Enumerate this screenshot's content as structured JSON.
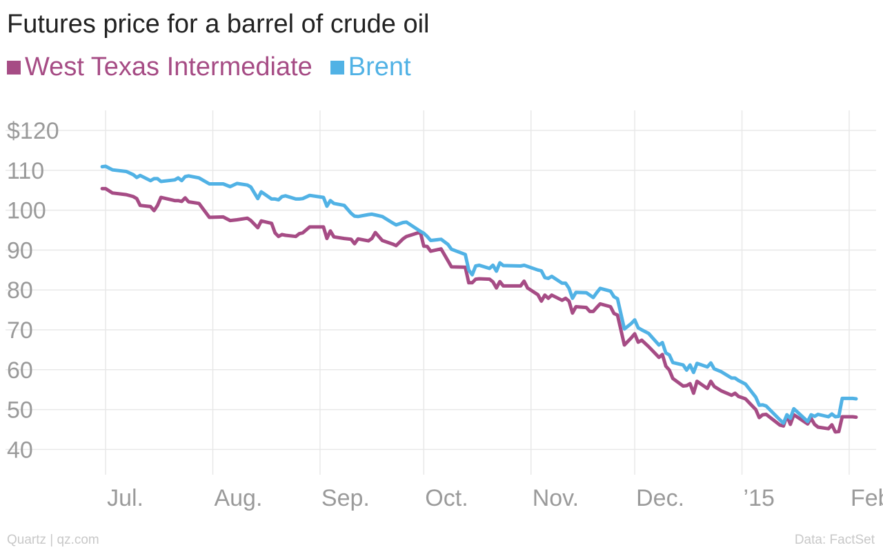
{
  "colors": {
    "wti": "#a64c85",
    "brent": "#51b2e5",
    "grid": "#e8e8e8",
    "text": "#9a9a9a",
    "title": "#222222"
  },
  "footer": {
    "source_left": "Quartz | qz.com",
    "source_right": "Data: FactSet"
  },
  "chart_data": {
    "type": "line",
    "title": "Futures price for a barrel of crude oil",
    "xlabel": "",
    "ylabel": "",
    "ylim": [
      35,
      125
    ],
    "y_ticks": [
      {
        "value": 120,
        "label": "$120"
      },
      {
        "value": 110,
        "label": "110"
      },
      {
        "value": 100,
        "label": "100"
      },
      {
        "value": 90,
        "label": "90"
      },
      {
        "value": 80,
        "label": "80"
      },
      {
        "value": 70,
        "label": "70"
      },
      {
        "value": 60,
        "label": "60"
      },
      {
        "value": 50,
        "label": "50"
      },
      {
        "value": 40,
        "label": "40"
      }
    ],
    "x_domain": [
      "2014-06-26",
      "2015-02-04"
    ],
    "x_ticks": [
      {
        "date": "2014-07-01",
        "label": "Jul."
      },
      {
        "date": "2014-08-01",
        "label": "Aug."
      },
      {
        "date": "2014-09-01",
        "label": "Sep."
      },
      {
        "date": "2014-10-01",
        "label": "Oct."
      },
      {
        "date": "2014-11-01",
        "label": "Nov."
      },
      {
        "date": "2014-12-01",
        "label": "Dec."
      },
      {
        "date": "2015-01-01",
        "label": "’15"
      },
      {
        "date": "2015-02-01",
        "label": "Feb."
      }
    ],
    "legend_position": "top-left",
    "grid": true,
    "series": [
      {
        "name": "West Texas Intermediate",
        "color": "#a64c85",
        "points": [
          [
            "2014-06-30",
            105.4
          ],
          [
            "2014-07-01",
            105.4
          ],
          [
            "2014-07-03",
            104.3
          ],
          [
            "2014-07-07",
            103.9
          ],
          [
            "2014-07-09",
            103.4
          ],
          [
            "2014-07-10",
            102.9
          ],
          [
            "2014-07-11",
            101.2
          ],
          [
            "2014-07-14",
            100.9
          ],
          [
            "2014-07-15",
            99.9
          ],
          [
            "2014-07-16",
            101.2
          ],
          [
            "2014-07-17",
            103.2
          ],
          [
            "2014-07-21",
            102.4
          ],
          [
            "2014-07-22",
            102.4
          ],
          [
            "2014-07-23",
            102.2
          ],
          [
            "2014-07-24",
            103.1
          ],
          [
            "2014-07-25",
            102.1
          ],
          [
            "2014-07-28",
            101.7
          ],
          [
            "2014-07-31",
            98.2
          ],
          [
            "2014-08-04",
            98.3
          ],
          [
            "2014-08-06",
            97.4
          ],
          [
            "2014-08-08",
            97.6
          ],
          [
            "2014-08-11",
            98.0
          ],
          [
            "2014-08-12",
            97.4
          ],
          [
            "2014-08-14",
            95.6
          ],
          [
            "2014-08-15",
            97.3
          ],
          [
            "2014-08-18",
            96.7
          ],
          [
            "2014-08-19",
            94.3
          ],
          [
            "2014-08-20",
            93.4
          ],
          [
            "2014-08-21",
            93.9
          ],
          [
            "2014-08-22",
            93.7
          ],
          [
            "2014-08-25",
            93.4
          ],
          [
            "2014-08-26",
            94.1
          ],
          [
            "2014-08-27",
            94.3
          ],
          [
            "2014-08-29",
            95.8
          ],
          [
            "2014-09-02",
            95.8
          ],
          [
            "2014-09-03",
            92.9
          ],
          [
            "2014-09-04",
            94.8
          ],
          [
            "2014-09-05",
            93.3
          ],
          [
            "2014-09-08",
            92.9
          ],
          [
            "2014-09-10",
            92.7
          ],
          [
            "2014-09-11",
            91.6
          ],
          [
            "2014-09-12",
            92.8
          ],
          [
            "2014-09-15",
            92.3
          ],
          [
            "2014-09-16",
            92.9
          ],
          [
            "2014-09-17",
            94.4
          ],
          [
            "2014-09-19",
            92.4
          ],
          [
            "2014-09-22",
            91.5
          ],
          [
            "2014-09-23",
            91.1
          ],
          [
            "2014-09-25",
            92.8
          ],
          [
            "2014-09-26",
            93.4
          ],
          [
            "2014-09-30",
            94.5
          ],
          [
            "2014-10-01",
            91.0
          ],
          [
            "2014-10-02",
            90.9
          ],
          [
            "2014-10-03",
            89.7
          ],
          [
            "2014-10-06",
            90.3
          ],
          [
            "2014-10-08",
            87.3
          ],
          [
            "2014-10-09",
            85.8
          ],
          [
            "2014-10-13",
            85.7
          ],
          [
            "2014-10-14",
            81.8
          ],
          [
            "2014-10-15",
            81.8
          ],
          [
            "2014-10-16",
            82.7
          ],
          [
            "2014-10-17",
            82.8
          ],
          [
            "2014-10-20",
            82.7
          ],
          [
            "2014-10-21",
            82.0
          ],
          [
            "2014-10-22",
            80.5
          ],
          [
            "2014-10-23",
            82.1
          ],
          [
            "2014-10-24",
            81.0
          ],
          [
            "2014-10-29",
            81.0
          ],
          [
            "2014-10-30",
            82.2
          ],
          [
            "2014-10-31",
            80.5
          ],
          [
            "2014-11-03",
            78.8
          ],
          [
            "2014-11-04",
            77.2
          ],
          [
            "2014-11-05",
            78.7
          ],
          [
            "2014-11-06",
            77.9
          ],
          [
            "2014-11-07",
            78.7
          ],
          [
            "2014-11-10",
            77.4
          ],
          [
            "2014-11-11",
            77.9
          ],
          [
            "2014-11-12",
            77.2
          ],
          [
            "2014-11-13",
            74.2
          ],
          [
            "2014-11-14",
            75.8
          ],
          [
            "2014-11-17",
            75.6
          ],
          [
            "2014-11-18",
            74.6
          ],
          [
            "2014-11-19",
            74.6
          ],
          [
            "2014-11-20",
            75.6
          ],
          [
            "2014-11-21",
            76.5
          ],
          [
            "2014-11-24",
            75.8
          ],
          [
            "2014-11-25",
            74.1
          ],
          [
            "2014-11-26",
            73.7
          ],
          [
            "2014-11-28",
            66.2
          ],
          [
            "2014-11-30",
            68.0
          ],
          [
            "2014-12-01",
            69.0
          ],
          [
            "2014-12-02",
            66.9
          ],
          [
            "2014-12-03",
            67.4
          ],
          [
            "2014-12-05",
            65.8
          ],
          [
            "2014-12-08",
            63.1
          ],
          [
            "2014-12-09",
            63.8
          ],
          [
            "2014-12-10",
            60.9
          ],
          [
            "2014-12-11",
            59.9
          ],
          [
            "2014-12-12",
            57.8
          ],
          [
            "2014-12-15",
            55.9
          ],
          [
            "2014-12-16",
            56.0
          ],
          [
            "2014-12-17",
            56.5
          ],
          [
            "2014-12-18",
            54.1
          ],
          [
            "2014-12-19",
            57.1
          ],
          [
            "2014-12-22",
            55.3
          ],
          [
            "2014-12-23",
            57.1
          ],
          [
            "2014-12-24",
            55.8
          ],
          [
            "2014-12-26",
            54.7
          ],
          [
            "2014-12-29",
            53.6
          ],
          [
            "2014-12-30",
            54.1
          ],
          [
            "2014-12-31",
            53.3
          ],
          [
            "2015-01-02",
            52.7
          ],
          [
            "2015-01-05",
            50.0
          ],
          [
            "2015-01-06",
            48.0
          ],
          [
            "2015-01-07",
            48.7
          ],
          [
            "2015-01-08",
            48.8
          ],
          [
            "2015-01-12",
            46.1
          ],
          [
            "2015-01-13",
            45.9
          ],
          [
            "2015-01-14",
            48.5
          ],
          [
            "2015-01-15",
            46.3
          ],
          [
            "2015-01-16",
            48.7
          ],
          [
            "2015-01-20",
            46.4
          ],
          [
            "2015-01-21",
            47.8
          ],
          [
            "2015-01-22",
            46.3
          ],
          [
            "2015-01-23",
            45.6
          ],
          [
            "2015-01-26",
            45.2
          ],
          [
            "2015-01-27",
            46.2
          ],
          [
            "2015-01-28",
            44.4
          ],
          [
            "2015-01-29",
            44.5
          ],
          [
            "2015-01-30",
            48.2
          ],
          [
            "2015-02-02",
            48.2
          ],
          [
            "2015-02-03",
            48.1
          ]
        ]
      },
      {
        "name": "Brent",
        "color": "#51b2e5",
        "points": [
          [
            "2014-06-30",
            110.9
          ],
          [
            "2014-07-01",
            111.0
          ],
          [
            "2014-07-03",
            110.1
          ],
          [
            "2014-07-07",
            109.7
          ],
          [
            "2014-07-09",
            108.9
          ],
          [
            "2014-07-10",
            108.2
          ],
          [
            "2014-07-11",
            108.7
          ],
          [
            "2014-07-14",
            107.4
          ],
          [
            "2014-07-15",
            107.9
          ],
          [
            "2014-07-16",
            107.9
          ],
          [
            "2014-07-17",
            107.2
          ],
          [
            "2014-07-21",
            107.6
          ],
          [
            "2014-07-22",
            108.1
          ],
          [
            "2014-07-23",
            107.4
          ],
          [
            "2014-07-24",
            108.4
          ],
          [
            "2014-07-25",
            108.6
          ],
          [
            "2014-07-28",
            108.1
          ],
          [
            "2014-07-31",
            106.6
          ],
          [
            "2014-08-04",
            106.6
          ],
          [
            "2014-08-06",
            105.9
          ],
          [
            "2014-08-08",
            106.7
          ],
          [
            "2014-08-11",
            106.3
          ],
          [
            "2014-08-12",
            105.8
          ],
          [
            "2014-08-14",
            102.9
          ],
          [
            "2014-08-15",
            104.6
          ],
          [
            "2014-08-18",
            102.8
          ],
          [
            "2014-08-19",
            102.8
          ],
          [
            "2014-08-20",
            102.6
          ],
          [
            "2014-08-21",
            103.4
          ],
          [
            "2014-08-22",
            103.6
          ],
          [
            "2014-08-25",
            102.8
          ],
          [
            "2014-08-26",
            102.8
          ],
          [
            "2014-08-27",
            102.9
          ],
          [
            "2014-08-29",
            103.7
          ],
          [
            "2014-09-02",
            103.2
          ],
          [
            "2014-09-03",
            101.0
          ],
          [
            "2014-09-04",
            102.4
          ],
          [
            "2014-09-05",
            101.7
          ],
          [
            "2014-09-08",
            101.2
          ],
          [
            "2014-09-10",
            99.2
          ],
          [
            "2014-09-11",
            98.5
          ],
          [
            "2014-09-12",
            98.4
          ],
          [
            "2014-09-15",
            98.9
          ],
          [
            "2014-09-16",
            99.0
          ],
          [
            "2014-09-17",
            98.8
          ],
          [
            "2014-09-19",
            98.4
          ],
          [
            "2014-09-22",
            96.8
          ],
          [
            "2014-09-23",
            96.3
          ],
          [
            "2014-09-25",
            96.9
          ],
          [
            "2014-09-26",
            97.0
          ],
          [
            "2014-09-30",
            94.7
          ],
          [
            "2014-10-01",
            94.2
          ],
          [
            "2014-10-02",
            93.4
          ],
          [
            "2014-10-03",
            92.4
          ],
          [
            "2014-10-06",
            92.7
          ],
          [
            "2014-10-08",
            91.4
          ],
          [
            "2014-10-09",
            90.2
          ],
          [
            "2014-10-13",
            88.9
          ],
          [
            "2014-10-14",
            85.0
          ],
          [
            "2014-10-15",
            83.8
          ],
          [
            "2014-10-16",
            86.0
          ],
          [
            "2014-10-17",
            86.2
          ],
          [
            "2014-10-20",
            85.4
          ],
          [
            "2014-10-21",
            86.2
          ],
          [
            "2014-10-22",
            84.7
          ],
          [
            "2014-10-23",
            86.8
          ],
          [
            "2014-10-24",
            86.1
          ],
          [
            "2014-10-29",
            86.0
          ],
          [
            "2014-10-30",
            86.2
          ],
          [
            "2014-10-31",
            85.9
          ],
          [
            "2014-11-03",
            85.0
          ],
          [
            "2014-11-04",
            84.8
          ],
          [
            "2014-11-05",
            83.1
          ],
          [
            "2014-11-06",
            82.9
          ],
          [
            "2014-11-07",
            83.4
          ],
          [
            "2014-11-10",
            81.7
          ],
          [
            "2014-11-11",
            81.7
          ],
          [
            "2014-11-12",
            80.4
          ],
          [
            "2014-11-13",
            77.9
          ],
          [
            "2014-11-14",
            79.4
          ],
          [
            "2014-11-17",
            79.3
          ],
          [
            "2014-11-18",
            78.7
          ],
          [
            "2014-11-19",
            78.1
          ],
          [
            "2014-11-20",
            79.3
          ],
          [
            "2014-11-21",
            80.4
          ],
          [
            "2014-11-24",
            79.7
          ],
          [
            "2014-11-25",
            78.3
          ],
          [
            "2014-11-26",
            77.8
          ],
          [
            "2014-11-28",
            70.2
          ],
          [
            "2014-11-30",
            71.6
          ],
          [
            "2014-12-01",
            72.5
          ],
          [
            "2014-12-02",
            70.5
          ],
          [
            "2014-12-03",
            70.0
          ],
          [
            "2014-12-05",
            69.1
          ],
          [
            "2014-12-08",
            66.2
          ],
          [
            "2014-12-09",
            66.8
          ],
          [
            "2014-12-10",
            64.2
          ],
          [
            "2014-12-11",
            63.7
          ],
          [
            "2014-12-12",
            61.8
          ],
          [
            "2014-12-15",
            61.2
          ],
          [
            "2014-12-16",
            59.9
          ],
          [
            "2014-12-17",
            61.2
          ],
          [
            "2014-12-18",
            59.3
          ],
          [
            "2014-12-19",
            61.6
          ],
          [
            "2014-12-22",
            60.7
          ],
          [
            "2014-12-23",
            61.7
          ],
          [
            "2014-12-24",
            60.2
          ],
          [
            "2014-12-26",
            59.5
          ],
          [
            "2014-12-29",
            57.9
          ],
          [
            "2014-12-30",
            57.9
          ],
          [
            "2014-12-31",
            57.3
          ],
          [
            "2015-01-02",
            56.4
          ],
          [
            "2015-01-05",
            53.1
          ],
          [
            "2015-01-06",
            51.1
          ],
          [
            "2015-01-07",
            51.2
          ],
          [
            "2015-01-08",
            50.9
          ],
          [
            "2015-01-12",
            47.4
          ],
          [
            "2015-01-13",
            46.6
          ],
          [
            "2015-01-14",
            48.7
          ],
          [
            "2015-01-15",
            47.8
          ],
          [
            "2015-01-16",
            50.2
          ],
          [
            "2015-01-20",
            47.0
          ],
          [
            "2015-01-21",
            48.7
          ],
          [
            "2015-01-22",
            48.3
          ],
          [
            "2015-01-23",
            48.8
          ],
          [
            "2015-01-26",
            48.2
          ],
          [
            "2015-01-27",
            48.9
          ],
          [
            "2015-01-28",
            48.2
          ],
          [
            "2015-01-29",
            48.3
          ],
          [
            "2015-01-30",
            52.8
          ],
          [
            "2015-02-02",
            52.8
          ],
          [
            "2015-02-03",
            52.7
          ]
        ]
      }
    ]
  }
}
